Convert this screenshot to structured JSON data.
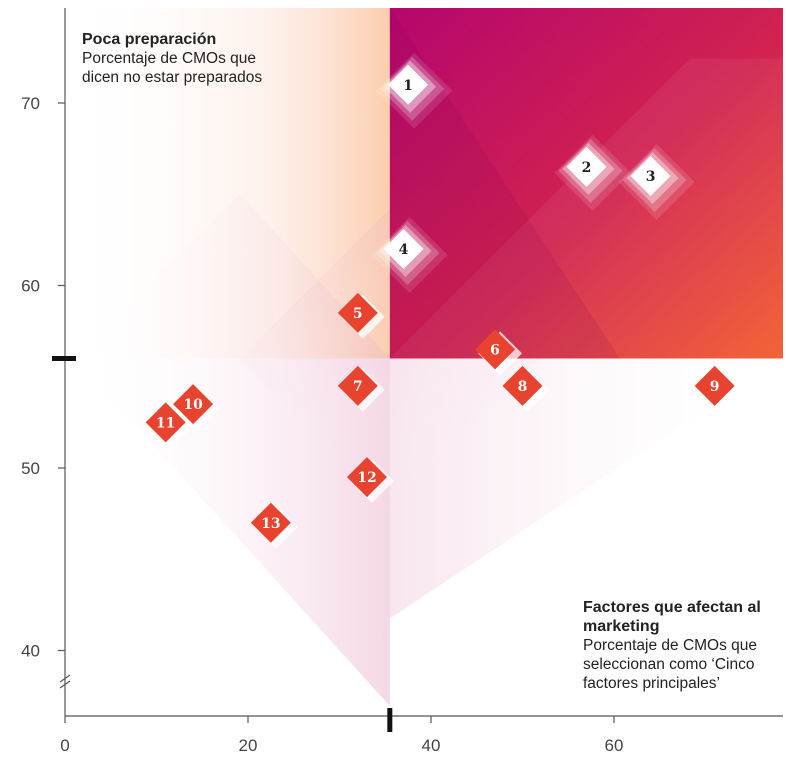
{
  "chart_data": {
    "type": "scatter",
    "xlim": [
      0,
      73
    ],
    "ylim": [
      37,
      75
    ],
    "x_ticks": [
      0,
      20,
      40,
      60
    ],
    "y_ticks": [
      40,
      50,
      60,
      70
    ],
    "grid": false,
    "reference_lines": {
      "x": 35.5,
      "y": 56
    },
    "points": [
      {
        "label": "1",
        "x": 37.5,
        "y": 71
      },
      {
        "label": "2",
        "x": 57,
        "y": 66.5
      },
      {
        "label": "3",
        "x": 64,
        "y": 66
      },
      {
        "label": "4",
        "x": 37,
        "y": 62
      },
      {
        "label": "5",
        "x": 32,
        "y": 58.5
      },
      {
        "label": "6",
        "x": 47,
        "y": 56.5
      },
      {
        "label": "7",
        "x": 32,
        "y": 54.5
      },
      {
        "label": "8",
        "x": 50,
        "y": 54.5
      },
      {
        "label": "9",
        "x": 71,
        "y": 54.5
      },
      {
        "label": "10",
        "x": 14,
        "y": 53.5
      },
      {
        "label": "11",
        "x": 11,
        "y": 52.5
      },
      {
        "label": "12",
        "x": 33,
        "y": 49.5
      },
      {
        "label": "13",
        "x": 22.5,
        "y": 47
      }
    ],
    "highlighted_points": [
      "1",
      "2",
      "3",
      "4"
    ]
  },
  "annotations": {
    "top_left": {
      "title": "Poca preparación",
      "subtitle": "Porcentaje de CMOs que dicen no estar preparados"
    },
    "bottom_right": {
      "title": "Factores que afectan al marketing",
      "subtitle": "Porcentaje de CMOs que seleccionan como ‘Cinco factores principales’"
    }
  },
  "colors": {
    "marker_red": "#e8432e",
    "quadrant_magenta": "#b5066e",
    "quadrant_orange": "#f25a2b",
    "axis": "#555555",
    "reference_mark": "#111111"
  }
}
